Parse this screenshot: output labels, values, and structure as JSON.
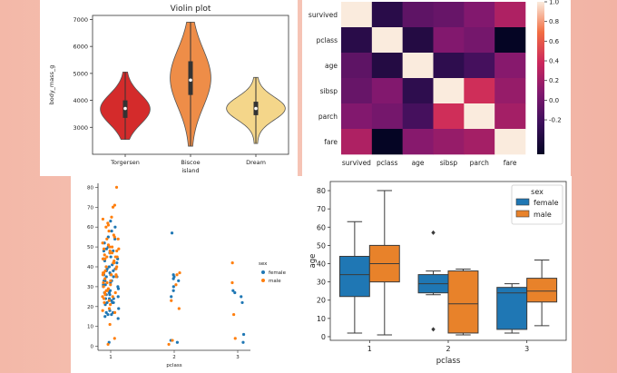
{
  "chart_data": [
    {
      "id": "violin",
      "type": "violin",
      "title": "Violin plot",
      "xlabel": "island",
      "ylabel": "body_mass_g",
      "categories": [
        "Torgersen",
        "Biscoe",
        "Dream"
      ],
      "yticks": [
        "3000",
        "4000",
        "5000",
        "6000",
        "7000"
      ],
      "ylim": [
        2000,
        7150
      ],
      "violins": [
        {
          "color": "#d42b2b",
          "min": 2550,
          "q1": 3350,
          "median": 3700,
          "q3": 4000,
          "max": 5050,
          "width": 0.55
        },
        {
          "color": "#ee8d48",
          "min": 2300,
          "q1": 4200,
          "median": 4750,
          "q3": 5450,
          "max": 6900,
          "width": 0.45
        },
        {
          "color": "#f4d68a",
          "min": 2400,
          "q1": 3450,
          "median": 3700,
          "q3": 3950,
          "max": 4850,
          "width": 0.65
        }
      ]
    },
    {
      "id": "heatmap",
      "type": "heatmap",
      "labels": [
        "survived",
        "pclass",
        "age",
        "sibsp",
        "parch",
        "fare"
      ],
      "matrix": [
        [
          1,
          -0.34,
          -0.08,
          -0.04,
          0.08,
          0.26
        ],
        [
          -0.34,
          1,
          -0.37,
          0.08,
          0.02,
          -0.55
        ],
        [
          -0.08,
          -0.37,
          1,
          -0.31,
          -0.19,
          0.1
        ],
        [
          -0.04,
          0.08,
          -0.31,
          1,
          0.41,
          0.16
        ],
        [
          0.08,
          0.02,
          -0.19,
          0.41,
          1,
          0.22
        ],
        [
          0.26,
          -0.55,
          0.1,
          0.16,
          0.22,
          1
        ]
      ],
      "colorbar_ticks": [
        "1.0",
        "0.8",
        "0.6",
        "0.4",
        "0.2",
        "0.0",
        "-0.2"
      ],
      "vmin": -0.55,
      "vmax": 1
    },
    {
      "id": "strip",
      "type": "scatter",
      "xlabel": "pclass",
      "ylabel": "",
      "categories": [
        "1",
        "2",
        "3"
      ],
      "yticks": [
        "0",
        "10",
        "20",
        "30",
        "40",
        "50",
        "60",
        "70",
        "80"
      ],
      "ylim": [
        -2,
        82
      ],
      "legend_title": "sex",
      "legend": [
        {
          "name": "female",
          "color": "#1f77b4"
        },
        {
          "name": "male",
          "color": "#ff7f0e"
        }
      ],
      "series": [
        {
          "name": "female",
          "cat": [
            1,
            1,
            1,
            1,
            1,
            1,
            1,
            1,
            1,
            1,
            1,
            1,
            1,
            1,
            1,
            1,
            1,
            1,
            1,
            1,
            1,
            1,
            1,
            1,
            1,
            1,
            1,
            1,
            1,
            1,
            1,
            1,
            1,
            1,
            1,
            1,
            1,
            1,
            1,
            1,
            1,
            1,
            1,
            1,
            1,
            1,
            1,
            1,
            1,
            1,
            1,
            1,
            1,
            1,
            1,
            1,
            1,
            1,
            1,
            1,
            1,
            2,
            2,
            2,
            2,
            2,
            2,
            2,
            2,
            2,
            2,
            3,
            3,
            3,
            3,
            3,
            3
          ],
          "values": [
            63,
            58,
            52,
            49,
            47,
            45,
            44,
            42,
            41,
            40,
            39,
            39,
            38,
            36,
            36,
            35,
            35,
            33,
            33,
            32,
            31,
            30,
            30,
            29,
            27,
            26,
            25,
            24,
            24,
            23,
            22,
            22,
            21,
            19,
            18,
            17,
            16,
            16,
            15,
            60,
            55,
            50,
            48,
            44,
            38,
            35,
            28,
            26,
            22,
            2,
            54,
            48,
            43,
            40,
            37,
            33,
            31,
            27,
            24,
            17,
            14,
            57,
            36,
            35,
            34,
            33,
            30,
            28,
            25,
            3,
            2,
            28,
            27,
            25,
            22,
            6,
            2
          ]
        },
        {
          "name": "male",
          "cat": [
            1,
            1,
            1,
            1,
            1,
            1,
            1,
            1,
            1,
            1,
            1,
            1,
            1,
            1,
            1,
            1,
            1,
            1,
            1,
            1,
            1,
            1,
            1,
            1,
            1,
            1,
            1,
            1,
            1,
            1,
            1,
            1,
            1,
            1,
            1,
            1,
            1,
            1,
            1,
            1,
            1,
            1,
            1,
            1,
            1,
            1,
            1,
            1,
            1,
            1,
            1,
            1,
            1,
            1,
            1,
            1,
            1,
            1,
            1,
            1,
            1,
            1,
            1,
            1,
            1,
            1,
            2,
            2,
            2,
            2,
            2,
            2,
            2,
            3,
            3,
            3,
            3
          ],
          "values": [
            80,
            71,
            70,
            65,
            64,
            62,
            61,
            60,
            58,
            56,
            55,
            54,
            54,
            52,
            51,
            50,
            50,
            49,
            49,
            48,
            48,
            47,
            47,
            46,
            45,
            45,
            45,
            44,
            44,
            43,
            42,
            42,
            40,
            40,
            39,
            38,
            37,
            37,
            36,
            36,
            36,
            35,
            34,
            33,
            32,
            32,
            31,
            30,
            29,
            28,
            28,
            27,
            27,
            26,
            25,
            25,
            24,
            23,
            22,
            21,
            19,
            18,
            17,
            11,
            4,
            1,
            37,
            36,
            31,
            23,
            3,
            1,
            19,
            42,
            32,
            16,
            4
          ]
        }
      ]
    },
    {
      "id": "box",
      "type": "box",
      "xlabel": "pclass",
      "ylabel": "age",
      "categories": [
        "1",
        "2",
        "3"
      ],
      "yticks": [
        "0",
        "10",
        "20",
        "30",
        "40",
        "50",
        "60",
        "70",
        "80"
      ],
      "ylim": [
        -2,
        85
      ],
      "legend_title": "sex",
      "legend": [
        {
          "name": "female",
          "color": "#1f77b4"
        },
        {
          "name": "male",
          "color": "#e8822a"
        }
      ],
      "boxes": [
        {
          "cat": 0,
          "sex": "female",
          "min": 2,
          "q1": 22,
          "median": 34,
          "q3": 44,
          "max": 63,
          "outliers": []
        },
        {
          "cat": 0,
          "sex": "male",
          "min": 1,
          "q1": 30,
          "median": 40,
          "q3": 50,
          "max": 80,
          "outliers": []
        },
        {
          "cat": 1,
          "sex": "female",
          "min": 23,
          "q1": 24,
          "median": 29,
          "q3": 34,
          "max": 36,
          "outliers": [
            57,
            4
          ]
        },
        {
          "cat": 1,
          "sex": "male",
          "min": 1,
          "q1": 2,
          "median": 18,
          "q3": 36,
          "max": 37,
          "outliers": []
        },
        {
          "cat": 2,
          "sex": "female",
          "min": 2,
          "q1": 4,
          "median": 24,
          "q3": 27,
          "max": 29,
          "outliers": []
        },
        {
          "cat": 2,
          "sex": "male",
          "min": 6,
          "q1": 19,
          "median": 25,
          "q3": 32,
          "max": 42,
          "outliers": []
        }
      ]
    }
  ]
}
